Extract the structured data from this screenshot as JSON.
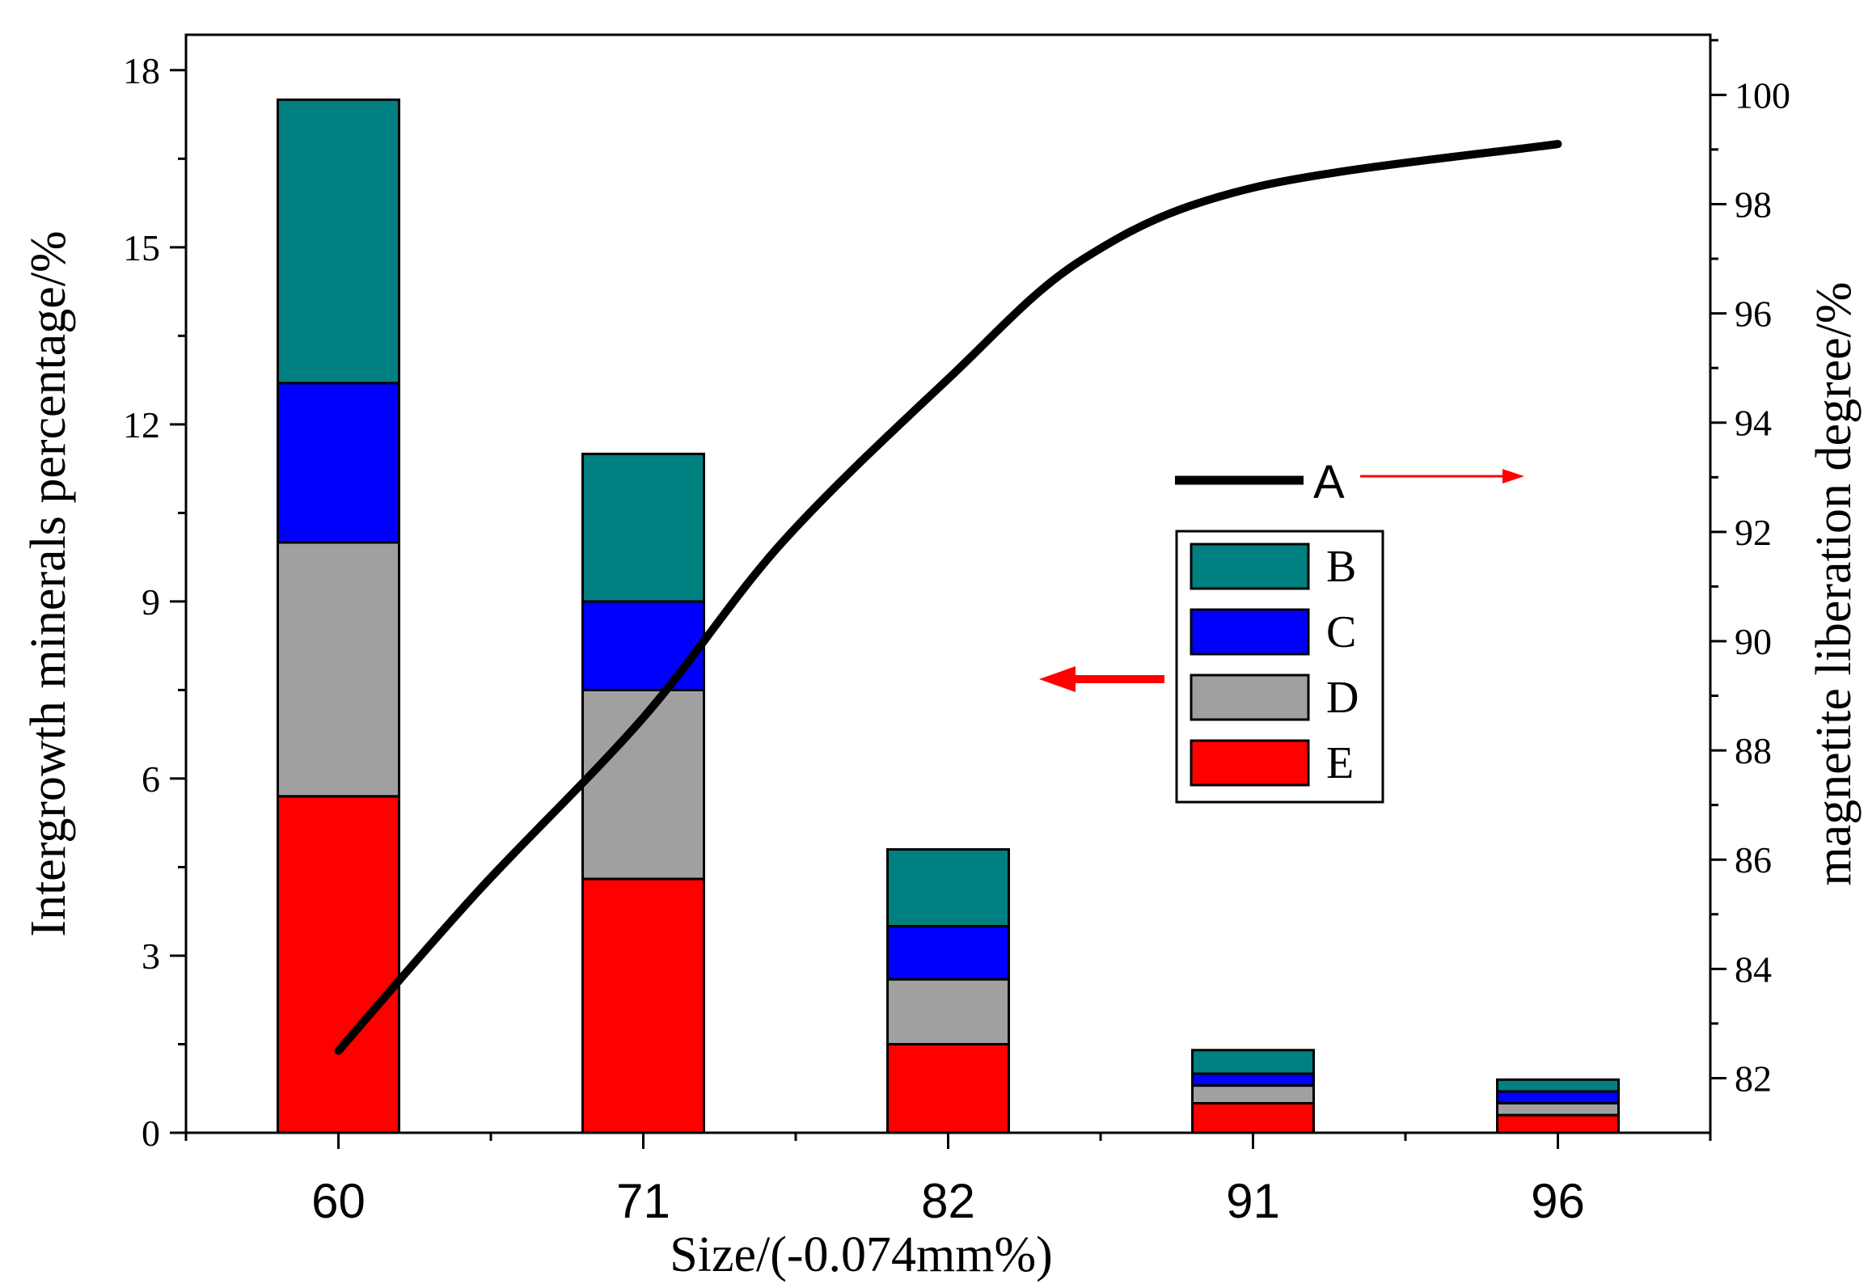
{
  "chart_data": {
    "type": "bar",
    "stacked": true,
    "categories": [
      "60",
      "71",
      "82",
      "91",
      "96"
    ],
    "series": [
      {
        "name": "E",
        "color": "#ff0000",
        "values": [
          5.7,
          4.3,
          1.5,
          0.5,
          0.3
        ]
      },
      {
        "name": "D",
        "color": "#a0a0a0",
        "values": [
          4.3,
          3.2,
          1.1,
          0.3,
          0.2
        ]
      },
      {
        "name": "C",
        "color": "#0000ff",
        "values": [
          2.7,
          1.5,
          0.9,
          0.2,
          0.2
        ]
      },
      {
        "name": "B",
        "color": "#008080",
        "values": [
          4.8,
          2.5,
          1.3,
          0.4,
          0.2
        ]
      }
    ],
    "line": {
      "name": "A",
      "color": "#000000",
      "axis": "right",
      "x": [
        60,
        65,
        71,
        76,
        82,
        86,
        91,
        96
      ],
      "y": [
        82.5,
        85.4,
        88.6,
        91.8,
        94.8,
        97.0,
        98.3,
        99.1
      ]
    },
    "xlabel": "Size/(-0.074mm%)",
    "ylabel_left": "Intergrowth minerals percentage/%",
    "ylabel_right": "magnetite liberation degree/%",
    "ylim_left": [
      0,
      18.6
    ],
    "ylim_right": [
      81,
      101.1
    ],
    "yticks_left": [
      "0",
      "3",
      "6",
      "9",
      "12",
      "15",
      "18"
    ],
    "yticks_right": [
      "82",
      "84",
      "86",
      "88",
      "90",
      "92",
      "94",
      "96",
      "98",
      "100"
    ],
    "legend_line_label": "A",
    "legend_bar_labels": [
      "B",
      "C",
      "D",
      "E"
    ]
  }
}
